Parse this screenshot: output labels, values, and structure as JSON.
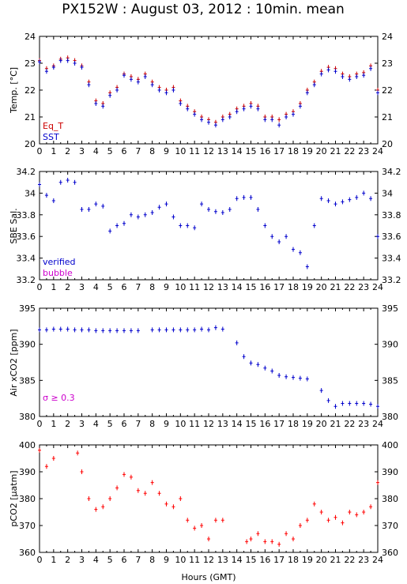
{
  "title": "PX152W : August 03, 2012 : 10min. mean",
  "xlabel": "Hours (GMT)",
  "xticks": [
    "0",
    "1",
    "2",
    "3",
    "4",
    "5",
    "6",
    "7",
    "8",
    "9",
    "10",
    "11",
    "12",
    "13",
    "14",
    "15",
    "16",
    "17",
    "18",
    "19",
    "20",
    "21",
    "22",
    "23",
    "24"
  ],
  "colors": {
    "eq_t": "#cc0000",
    "sst": "#0000cc",
    "verified": "#0000cc",
    "bubble": "#cc00cc",
    "air": "#0000cc",
    "sigma": "#cc00cc",
    "pco2": "#ff0000"
  },
  "chart_data": [
    {
      "type": "scatter",
      "panel": "temperature",
      "ylabel": "Temp. [°C]",
      "ylim": [
        20,
        24
      ],
      "yticks": [
        "20",
        "21",
        "22",
        "23",
        "24"
      ],
      "xlim": [
        0,
        24
      ],
      "legend": [
        "Eq_T",
        "SST"
      ],
      "series": [
        {
          "name": "Eq_T",
          "x": [
            0,
            0.5,
            1,
            1.5,
            2,
            2.5,
            3,
            3.5,
            4,
            4.5,
            5,
            5.5,
            6,
            6.5,
            7,
            7.5,
            8,
            8.5,
            9,
            9.5,
            10,
            10.5,
            11,
            11.5,
            12,
            12.5,
            13,
            13.5,
            14,
            14.5,
            15,
            15.5,
            16,
            16.5,
            17,
            17.5,
            18,
            18.5,
            19,
            19.5,
            20,
            20.5,
            21,
            21.5,
            22,
            22.5,
            23,
            23.5,
            24
          ],
          "y": [
            23.1,
            22.8,
            22.9,
            23.15,
            23.2,
            23.1,
            22.9,
            22.3,
            21.6,
            21.5,
            21.9,
            22.1,
            22.6,
            22.5,
            22.4,
            22.6,
            22.3,
            22.1,
            22.0,
            22.1,
            21.6,
            21.4,
            21.2,
            21.0,
            20.9,
            20.8,
            21.0,
            21.1,
            21.3,
            21.4,
            21.5,
            21.4,
            21.0,
            21.0,
            20.9,
            21.1,
            21.2,
            21.5,
            22.0,
            22.3,
            22.7,
            22.85,
            22.8,
            22.6,
            22.5,
            22.6,
            22.65,
            22.9,
            22.0
          ]
        },
        {
          "name": "SST",
          "x": [
            0,
            0.5,
            1,
            1.5,
            2,
            2.5,
            3,
            3.5,
            4,
            4.5,
            5,
            5.5,
            6,
            6.5,
            7,
            7.5,
            8,
            8.5,
            9,
            9.5,
            10,
            10.5,
            11,
            11.5,
            12,
            12.5,
            13,
            13.5,
            14,
            14.5,
            15,
            15.5,
            16,
            16.5,
            17,
            17.5,
            18,
            18.5,
            19,
            19.5,
            20,
            20.5,
            21,
            21.5,
            22,
            22.5,
            23,
            23.5,
            24
          ],
          "y": [
            23.05,
            22.7,
            22.85,
            23.1,
            23.1,
            23.0,
            22.85,
            22.2,
            21.5,
            21.4,
            21.8,
            22.0,
            22.55,
            22.4,
            22.3,
            22.5,
            22.2,
            22.0,
            21.9,
            22.0,
            21.5,
            21.3,
            21.1,
            20.9,
            20.8,
            20.7,
            20.9,
            21.0,
            21.2,
            21.3,
            21.4,
            21.3,
            20.9,
            20.9,
            20.7,
            21.0,
            21.1,
            21.4,
            21.9,
            22.2,
            22.6,
            22.75,
            22.7,
            22.5,
            22.4,
            22.5,
            22.55,
            22.8,
            21.9
          ]
        }
      ]
    },
    {
      "type": "scatter",
      "panel": "salinity",
      "ylabel": "SBE Sal.",
      "ylim": [
        33.2,
        34.2
      ],
      "yticks": [
        "33.2",
        "33.4",
        "33.6",
        "33.8",
        "34",
        "34.2"
      ],
      "xlim": [
        0,
        24
      ],
      "legend": [
        "verified",
        "bubble"
      ],
      "series": [
        {
          "name": "verified",
          "x": [
            0,
            0.5,
            1,
            1.5,
            2,
            2.5,
            3,
            3.5,
            4,
            4.5,
            5,
            5.5,
            6,
            6.5,
            7,
            7.5,
            8,
            8.5,
            9,
            9.5,
            10,
            10.5,
            11,
            11.5,
            12,
            12.5,
            13,
            13.5,
            14,
            14.5,
            15,
            15.5,
            16,
            16.5,
            17,
            17.5,
            18,
            18.5,
            19,
            19.5,
            20,
            20.5,
            21,
            21.5,
            22,
            22.5,
            23,
            23.5,
            24
          ],
          "y": [
            34.08,
            33.98,
            33.93,
            34.1,
            34.12,
            34.1,
            33.85,
            33.85,
            33.9,
            33.88,
            33.65,
            33.7,
            33.72,
            33.8,
            33.78,
            33.8,
            33.82,
            33.87,
            33.9,
            33.78,
            33.7,
            33.7,
            33.68,
            33.9,
            33.85,
            33.83,
            33.82,
            33.85,
            33.95,
            33.96,
            33.96,
            33.85,
            33.7,
            33.6,
            33.55,
            33.6,
            33.48,
            33.45,
            33.32,
            33.7,
            33.95,
            33.93,
            33.9,
            33.92,
            33.94,
            33.96,
            34.0,
            33.95,
            33.6
          ]
        }
      ]
    },
    {
      "type": "scatter",
      "panel": "air_xco2",
      "ylabel": "Air xCO2 [ppm]",
      "ylim": [
        380,
        395
      ],
      "yticks": [
        "380",
        "385",
        "390",
        "395"
      ],
      "xlim": [
        0,
        24
      ],
      "legend": [
        "σ ≥ 0.3"
      ],
      "series": [
        {
          "name": "verified",
          "x": [
            0,
            0.5,
            1,
            1.5,
            2,
            2.5,
            3,
            3.5,
            4,
            4.5,
            5,
            5.5,
            6,
            6.5,
            7,
            8,
            8.5,
            9,
            9.5,
            10,
            10.5,
            11,
            11.5,
            12,
            12.5,
            13,
            14,
            14.5,
            15,
            15.5,
            16,
            16.5,
            17,
            17.5,
            18,
            18.5,
            19,
            20,
            20.5,
            21,
            21.5,
            22,
            22.5,
            23,
            23.5,
            24
          ],
          "y": [
            392.0,
            392.0,
            392.1,
            392.1,
            392.1,
            392.0,
            392.0,
            392.0,
            391.9,
            391.9,
            391.9,
            391.9,
            391.9,
            391.9,
            391.9,
            392.0,
            392.0,
            392.0,
            392.0,
            392.0,
            392.0,
            392.0,
            392.1,
            392.0,
            392.3,
            392.1,
            390.2,
            388.3,
            387.4,
            387.2,
            386.7,
            386.3,
            385.7,
            385.5,
            385.4,
            385.3,
            385.2,
            383.6,
            382.2,
            381.4,
            381.8,
            381.8,
            381.8,
            381.8,
            381.7,
            381.4
          ]
        }
      ]
    },
    {
      "type": "scatter",
      "panel": "pco2",
      "ylabel": "pCO2 [μatm]",
      "ylim": [
        360,
        400
      ],
      "yticks": [
        "360",
        "370",
        "380",
        "390",
        "400"
      ],
      "xlim": [
        0,
        24
      ],
      "series": [
        {
          "name": "pCO2",
          "x": [
            0,
            0.5,
            1,
            2.7,
            3,
            3.5,
            4,
            4.5,
            5,
            5.5,
            6,
            6.5,
            7,
            7.5,
            8,
            8.5,
            9,
            9.5,
            10,
            10.5,
            11,
            11.5,
            12,
            12.5,
            13,
            14.7,
            15,
            15.5,
            16,
            16.5,
            17,
            17.5,
            18,
            18.5,
            19,
            19.5,
            20,
            20.5,
            21,
            21.5,
            22,
            22.5,
            23,
            23.5,
            24
          ],
          "y": [
            398,
            392,
            395,
            397,
            390,
            380,
            376,
            377,
            380,
            384,
            389,
            388,
            383,
            382,
            386,
            382,
            378,
            377,
            380,
            372,
            369,
            370,
            365,
            372,
            372,
            364,
            365,
            367,
            364,
            364,
            363,
            367,
            365,
            370,
            372,
            378,
            375,
            372,
            373,
            371,
            375,
            374,
            375,
            377,
            386
          ]
        }
      ]
    }
  ]
}
